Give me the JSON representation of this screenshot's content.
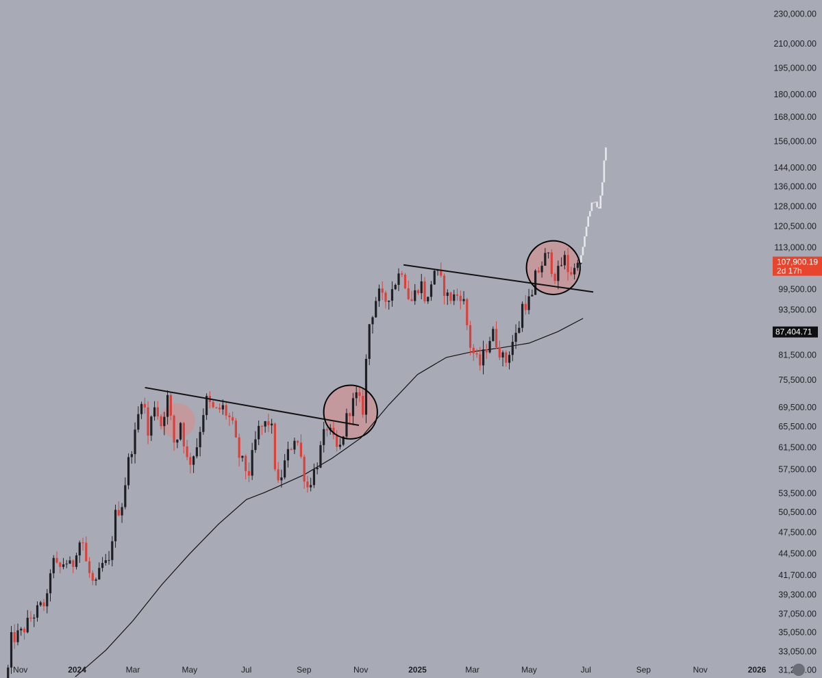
{
  "chart_data": {
    "type": "candlestick",
    "scale": "log",
    "grid": false,
    "colors": {
      "background": "#a8abb5",
      "up": "#1e1f24",
      "down": "#d9413a",
      "projection": "#e6e8ee",
      "moving_average": "#111111",
      "trendline": "#111111",
      "highlight_fill": "#d98a8a",
      "current_price_badge": "#e8452f",
      "ma_badge": "#0f0f12"
    },
    "y_axis": {
      "side": "right",
      "range": [
        30500,
        240000
      ],
      "ticks": [
        "230,000.00",
        "210,000.00",
        "195,000.00",
        "180,000.00",
        "168,000.00",
        "156,000.00",
        "144,000.00",
        "136,000.00",
        "128,000.00",
        "120,500.00",
        "113,000.00",
        "99,500.00",
        "93,500.00",
        "81,500.00",
        "75,500.00",
        "69,500.00",
        "65,500.00",
        "61,500.00",
        "57,500.00",
        "53,500.00",
        "50,500.00",
        "47,500.00",
        "44,500.00",
        "41,700.00",
        "39,300.00",
        "37,050.00",
        "35,050.00",
        "33,050.00",
        "31,250.00"
      ]
    },
    "x_axis": {
      "range": [
        "2023-10-16",
        "2026-01-12"
      ],
      "ticks": [
        {
          "label": "Nov",
          "date": "2023-11-01",
          "year": false
        },
        {
          "label": "2024",
          "date": "2024-01-01",
          "year": true
        },
        {
          "label": "Mar",
          "date": "2024-03-01",
          "year": false
        },
        {
          "label": "May",
          "date": "2024-05-01",
          "year": false
        },
        {
          "label": "Jul",
          "date": "2024-07-01",
          "year": false
        },
        {
          "label": "Sep",
          "date": "2024-09-01",
          "year": false
        },
        {
          "label": "Nov",
          "date": "2024-11-01",
          "year": false
        },
        {
          "label": "2025",
          "date": "2025-01-01",
          "year": true
        },
        {
          "label": "Mar",
          "date": "2025-03-01",
          "year": false
        },
        {
          "label": "May",
          "date": "2025-05-01",
          "year": false
        },
        {
          "label": "Jul",
          "date": "2025-07-01",
          "year": false
        },
        {
          "label": "Sep",
          "date": "2025-09-01",
          "year": false
        },
        {
          "label": "Nov",
          "date": "2025-11-01",
          "year": false
        },
        {
          "label": "2026",
          "date": "2026-01-01",
          "year": true
        }
      ]
    },
    "price_path": [
      [
        "2023-10-17",
        28500
      ],
      [
        "2023-10-24",
        34300
      ],
      [
        "2023-11-04",
        35000
      ],
      [
        "2023-11-14",
        36600
      ],
      [
        "2023-11-24",
        37800
      ],
      [
        "2023-12-02",
        38700
      ],
      [
        "2023-12-06",
        43800
      ],
      [
        "2023-12-14",
        42300
      ],
      [
        "2023-12-21",
        43700
      ],
      [
        "2023-12-28",
        42400
      ],
      [
        "2024-01-02",
        45300
      ],
      [
        "2024-01-08",
        46900
      ],
      [
        "2024-01-13",
        42900
      ],
      [
        "2024-01-22",
        39900
      ],
      [
        "2024-01-29",
        43000
      ],
      [
        "2024-02-06",
        43100
      ],
      [
        "2024-02-12",
        49800
      ],
      [
        "2024-02-20",
        51900
      ],
      [
        "2024-02-28",
        60000
      ],
      [
        "2024-03-05",
        64000
      ],
      [
        "2024-03-13",
        73000
      ],
      [
        "2024-03-19",
        63800
      ],
      [
        "2024-03-26",
        70400
      ],
      [
        "2024-04-02",
        66000
      ],
      [
        "2024-04-09",
        71500
      ],
      [
        "2024-04-17",
        61300
      ],
      [
        "2024-04-23",
        66600
      ],
      [
        "2024-05-01",
        58200
      ],
      [
        "2024-05-10",
        61500
      ],
      [
        "2024-05-20",
        71200
      ],
      [
        "2024-05-30",
        68400
      ],
      [
        "2024-06-07",
        69500
      ],
      [
        "2024-06-17",
        66400
      ],
      [
        "2024-06-24",
        60200
      ],
      [
        "2024-07-05",
        56600
      ],
      [
        "2024-07-15",
        64700
      ],
      [
        "2024-07-29",
        66800
      ],
      [
        "2024-08-05",
        54100
      ],
      [
        "2024-08-14",
        59200
      ],
      [
        "2024-08-25",
        64200
      ],
      [
        "2024-09-06",
        54300
      ],
      [
        "2024-09-16",
        58200
      ],
      [
        "2024-09-27",
        65800
      ],
      [
        "2024-10-10",
        60300
      ],
      [
        "2024-10-20",
        68500
      ],
      [
        "2024-10-29",
        71800
      ],
      [
        "2024-11-05",
        69100
      ],
      [
        "2024-11-11",
        88700
      ],
      [
        "2024-11-21",
        98500
      ],
      [
        "2024-11-28",
        95600
      ],
      [
        "2024-12-05",
        99100
      ],
      [
        "2024-12-17",
        106100
      ],
      [
        "2024-12-26",
        95200
      ],
      [
        "2025-01-06",
        102200
      ],
      [
        "2025-01-13",
        94500
      ],
      [
        "2025-01-20",
        106200
      ],
      [
        "2025-01-27",
        102400
      ],
      [
        "2025-02-05",
        96700
      ],
      [
        "2025-02-20",
        98300
      ],
      [
        "2025-02-28",
        84300
      ],
      [
        "2025-03-10",
        78600
      ],
      [
        "2025-03-24",
        87500
      ],
      [
        "2025-04-07",
        79300
      ],
      [
        "2025-04-14",
        84500
      ],
      [
        "2025-04-21",
        87500
      ],
      [
        "2025-04-25",
        94700
      ],
      [
        "2025-05-06",
        96800
      ],
      [
        "2025-05-09",
        103000
      ],
      [
        "2025-05-22",
        111000
      ],
      [
        "2025-05-30",
        104000
      ],
      [
        "2025-06-04",
        104800
      ],
      [
        "2025-06-09",
        110200
      ],
      [
        "2025-06-13",
        105900
      ],
      [
        "2025-06-19",
        104600
      ],
      [
        "2025-06-24",
        107900
      ]
    ],
    "projection_path": [
      [
        "2025-06-25",
        107900
      ],
      [
        "2025-06-29",
        113000
      ],
      [
        "2025-07-03",
        121000
      ],
      [
        "2025-07-07",
        128000
      ],
      [
        "2025-07-11",
        131000
      ],
      [
        "2025-07-15",
        126000
      ],
      [
        "2025-07-19",
        135000
      ],
      [
        "2025-07-23",
        153000
      ]
    ],
    "moving_average": {
      "points": [
        [
          "2023-12-30",
          30600
        ],
        [
          "2024-02-01",
          33200
        ],
        [
          "2024-03-01",
          36300
        ],
        [
          "2024-04-01",
          40500
        ],
        [
          "2024-05-01",
          44500
        ],
        [
          "2024-06-01",
          48700
        ],
        [
          "2024-07-01",
          52500
        ],
        [
          "2024-07-20",
          53600
        ],
        [
          "2024-08-01",
          54400
        ],
        [
          "2024-09-01",
          56600
        ],
        [
          "2024-10-01",
          59500
        ],
        [
          "2024-11-01",
          63300
        ],
        [
          "2024-12-01",
          70000
        ],
        [
          "2025-01-01",
          76800
        ],
        [
          "2025-02-01",
          80900
        ],
        [
          "2025-03-01",
          82300
        ],
        [
          "2025-04-01",
          83300
        ],
        [
          "2025-05-01",
          84500
        ],
        [
          "2025-06-01",
          87500
        ],
        [
          "2025-06-28",
          91100
        ]
      ],
      "value_label": "87,404.71"
    },
    "current_price": {
      "value": 107900.19,
      "label": "107,900.19",
      "countdown": "2d 17h"
    },
    "trendlines": [
      {
        "from": [
          "2024-03-14",
          73800
        ],
        "to": [
          "2024-10-30",
          65800
        ]
      },
      {
        "from": [
          "2024-12-17",
          107200
        ],
        "to": [
          "2025-07-09",
          98700
        ]
      }
    ],
    "highlights": [
      {
        "center": [
          "2024-04-18",
          66700
        ],
        "radius_ratio": 1.055,
        "outline": false
      },
      {
        "center": [
          "2024-10-21",
          68500
        ],
        "radius_ratio": 1.085,
        "outline": true
      },
      {
        "center": [
          "2025-05-27",
          106300
        ],
        "radius_ratio": 1.085,
        "outline": true
      }
    ]
  }
}
